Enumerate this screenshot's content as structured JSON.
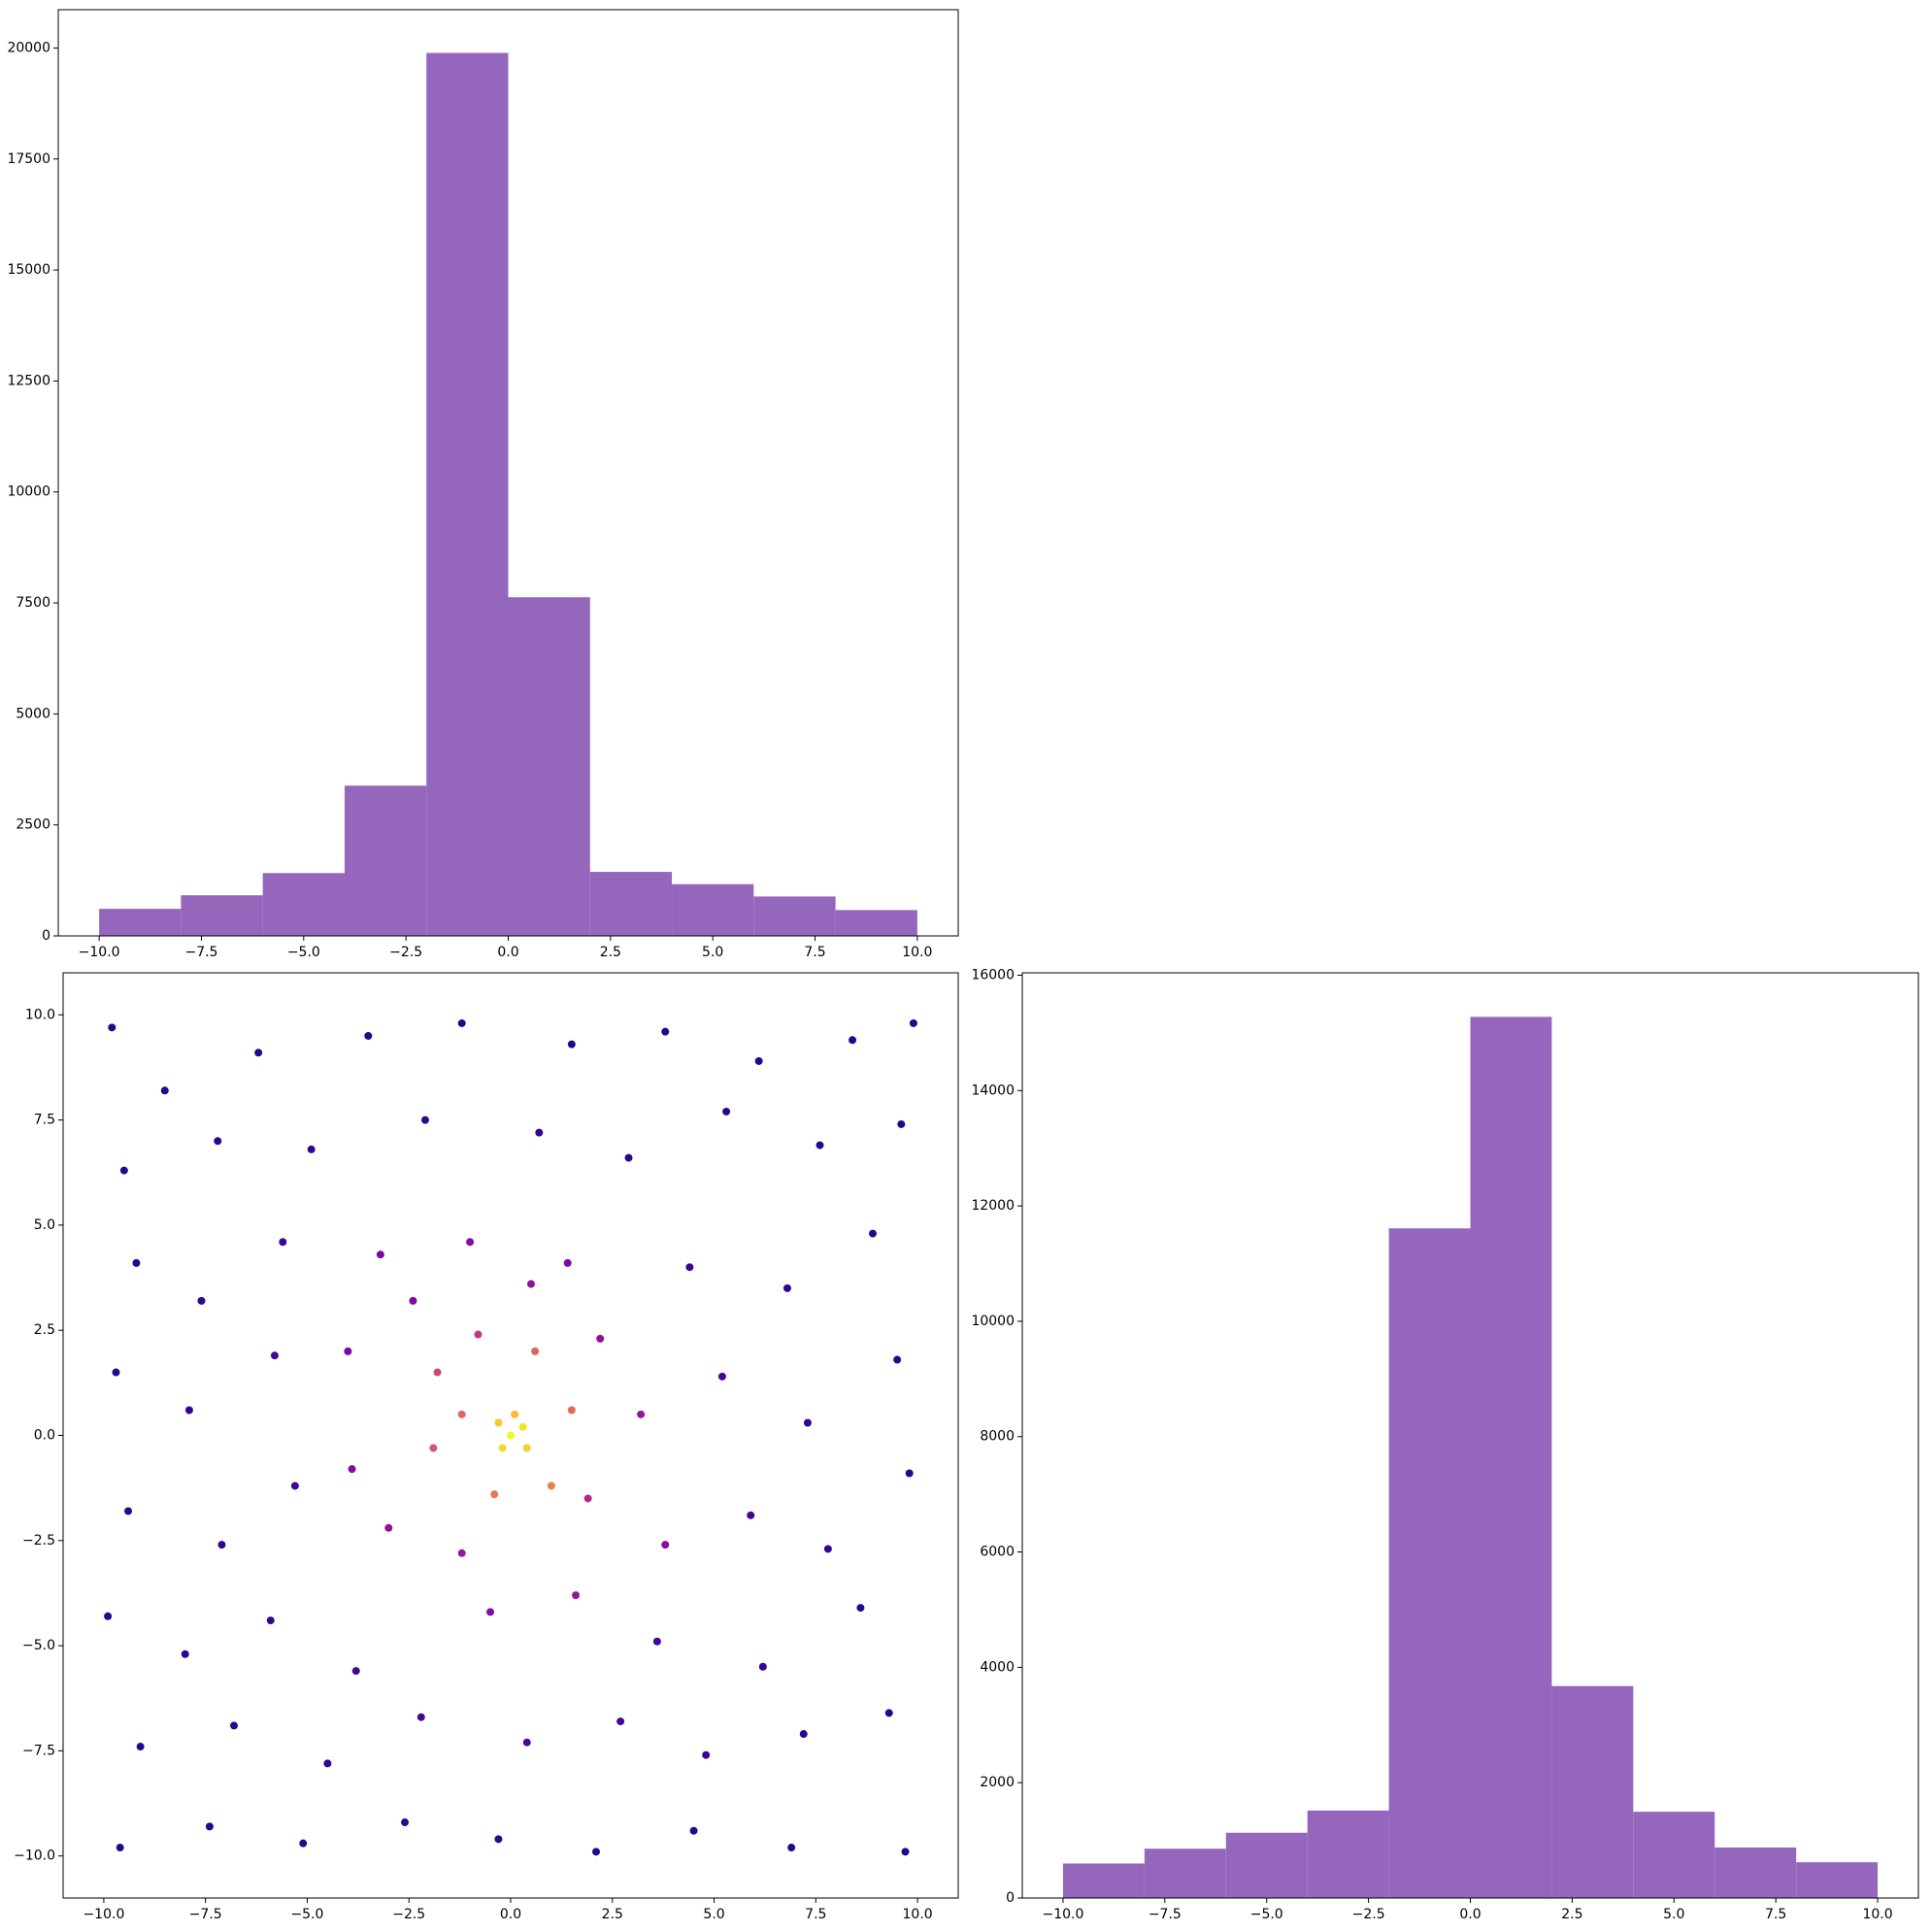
{
  "chart_data": [
    {
      "type": "histogram",
      "color": "#9467bd",
      "bins": [
        -10,
        -8,
        -6,
        -4,
        -2,
        0,
        2,
        4,
        6,
        8,
        10
      ],
      "counts": [
        610,
        915,
        1415,
        3384,
        19889,
        7628,
        1442,
        1165,
        888,
        582
      ],
      "xlim": [
        -11,
        11
      ],
      "ylim": [
        0,
        20863
      ],
      "xticks": [
        {
          "value": -10,
          "label": "−10.0"
        },
        {
          "value": -7.5,
          "label": "−7.5"
        },
        {
          "value": -5,
          "label": "−5.0"
        },
        {
          "value": -2.5,
          "label": "−2.5"
        },
        {
          "value": 0,
          "label": "0.0"
        },
        2.5,
        {
          "value": 5,
          "label": "5.0"
        },
        7.5,
        {
          "value": 10,
          "label": "10.0"
        }
      ],
      "yticks": [
        0,
        2500,
        5000,
        7500,
        10000,
        12500,
        15000,
        17500,
        20000
      ]
    },
    {
      "type": "scatter",
      "colormap": "plasma",
      "x": [
        -9.8,
        -8.5,
        -6.2,
        -3.5,
        -1.2,
        1.5,
        3.8,
        6.1,
        8.4,
        9.9,
        -9.5,
        -7.2,
        -4.9,
        -2.1,
        0.7,
        2.9,
        5.3,
        7.6,
        9.6,
        -9.2,
        -7.6,
        -5.6,
        4.4,
        6.8,
        8.9,
        -9.7,
        -7.9,
        -5.8,
        5.2,
        7.3,
        9.5,
        -9.4,
        -7.1,
        -5.3,
        5.9,
        7.8,
        9.8,
        -9.9,
        -8.0,
        -5.9,
        -3.8,
        3.6,
        6.2,
        8.6,
        -9.1,
        -6.8,
        -4.5,
        -2.2,
        0.4,
        2.7,
        4.8,
        7.2,
        9.3,
        -9.6,
        -7.4,
        -5.1,
        -2.6,
        -0.3,
        2.1,
        4.5,
        6.9,
        9.7,
        -3.2,
        -1.0,
        1.4,
        -4.0,
        2.2,
        -3.9,
        -3.0,
        -1.2,
        1.9,
        3.2,
        -2.4,
        0.5,
        -0.5,
        1.6,
        3.8,
        -1.8,
        -0.8,
        0.6,
        1.5,
        -1.9,
        -0.4,
        1.0,
        -1.2,
        0,
        0.3,
        -0.2,
        0.4,
        -0.3,
        0.1
      ],
      "y": [
        9.7,
        8.2,
        9.1,
        9.5,
        9.8,
        9.3,
        9.6,
        8.9,
        9.4,
        9.8,
        6.3,
        7.0,
        6.8,
        7.5,
        7.2,
        6.6,
        7.7,
        6.9,
        7.4,
        4.1,
        3.2,
        4.6,
        4.0,
        3.5,
        4.8,
        1.5,
        0.6,
        1.9,
        1.4,
        0.3,
        1.8,
        -1.8,
        -2.6,
        -1.2,
        -1.9,
        -2.7,
        -0.9,
        -4.3,
        -5.2,
        -4.4,
        -5.6,
        -4.9,
        -5.5,
        -4.1,
        -7.4,
        -6.9,
        -7.8,
        -6.7,
        -7.3,
        -6.8,
        -7.6,
        -7.1,
        -6.6,
        -9.8,
        -9.3,
        -9.7,
        -9.2,
        -9.6,
        -9.9,
        -9.4,
        -9.8,
        -9.9,
        4.3,
        4.6,
        4.1,
        2.0,
        2.3,
        -0.8,
        -2.2,
        -2.8,
        -1.5,
        0.5,
        3.2,
        3.6,
        -4.2,
        -3.8,
        -2.6,
        1.5,
        2.4,
        2.0,
        0.6,
        -0.3,
        -1.4,
        -1.2,
        0.5,
        0,
        0.2,
        -0.3,
        -0.3,
        0.3,
        0.5
      ],
      "c": [
        0.05,
        0.05,
        0.05,
        0.05,
        0.05,
        0.05,
        0.05,
        0.05,
        0.05,
        0.05,
        0.06,
        0.06,
        0.07,
        0.08,
        0.08,
        0.07,
        0.06,
        0.06,
        0.05,
        0.06,
        0.08,
        0.1,
        0.1,
        0.08,
        0.06,
        0.06,
        0.08,
        0.12,
        0.12,
        0.08,
        0.06,
        0.06,
        0.08,
        0.12,
        0.12,
        0.08,
        0.05,
        0.05,
        0.07,
        0.09,
        0.12,
        0.12,
        0.08,
        0.06,
        0.05,
        0.06,
        0.08,
        0.12,
        0.14,
        0.12,
        0.09,
        0.06,
        0.05,
        0.05,
        0.05,
        0.05,
        0.06,
        0.07,
        0.06,
        0.05,
        0.05,
        0.05,
        0.25,
        0.28,
        0.27,
        0.26,
        0.3,
        0.27,
        0.3,
        0.33,
        0.4,
        0.32,
        0.26,
        0.3,
        0.28,
        0.32,
        0.28,
        0.5,
        0.45,
        0.6,
        0.62,
        0.55,
        0.65,
        0.68,
        0.6,
        1.0,
        0.95,
        0.92,
        0.9,
        0.88,
        0.85
      ],
      "xlim": [
        -11,
        11
      ],
      "ylim": [
        -11,
        11
      ],
      "xticks": [
        {
          "value": -10,
          "label": "−10.0"
        },
        {
          "value": -7.5,
          "label": "−7.5"
        },
        {
          "value": -5,
          "label": "−5.0"
        },
        {
          "value": -2.5,
          "label": "−2.5"
        },
        {
          "value": 0,
          "label": "0.0"
        },
        2.5,
        {
          "value": 5,
          "label": "5.0"
        },
        7.5,
        {
          "value": 10,
          "label": "10.0"
        }
      ],
      "yticks": [
        {
          "value": -10,
          "label": "−10.0"
        },
        {
          "value": -7.5,
          "label": "−7.5"
        },
        {
          "value": -5,
          "label": "−5.0"
        },
        {
          "value": -2.5,
          "label": "−2.5"
        },
        {
          "value": 0,
          "label": "0.0"
        },
        2.5,
        {
          "value": 5,
          "label": "5.0"
        },
        7.5,
        {
          "value": 10,
          "label": "10.0"
        }
      ]
    },
    {
      "type": "histogram",
      "color": "#9467bd",
      "bins": [
        -10,
        -8,
        -6,
        -4,
        -2,
        0,
        2,
        4,
        6,
        8,
        10
      ],
      "counts": [
        598,
        855,
        1132,
        1517,
        11611,
        15278,
        3675,
        1496,
        876,
        620
      ],
      "xlim": [
        -11,
        11
      ],
      "ylim": [
        0,
        16042
      ],
      "xticks": [
        {
          "value": -10,
          "label": "−10.0"
        },
        {
          "value": -7.5,
          "label": "−7.5"
        },
        {
          "value": -5,
          "label": "−5.0"
        },
        {
          "value": -2.5,
          "label": "−2.5"
        },
        {
          "value": 0,
          "label": "0.0"
        },
        2.5,
        {
          "value": 5,
          "label": "5.0"
        },
        7.5,
        {
          "value": 10,
          "label": "10.0"
        }
      ],
      "yticks": [
        0,
        2000,
        4000,
        6000,
        8000,
        10000,
        12000,
        14000,
        16000
      ]
    }
  ]
}
